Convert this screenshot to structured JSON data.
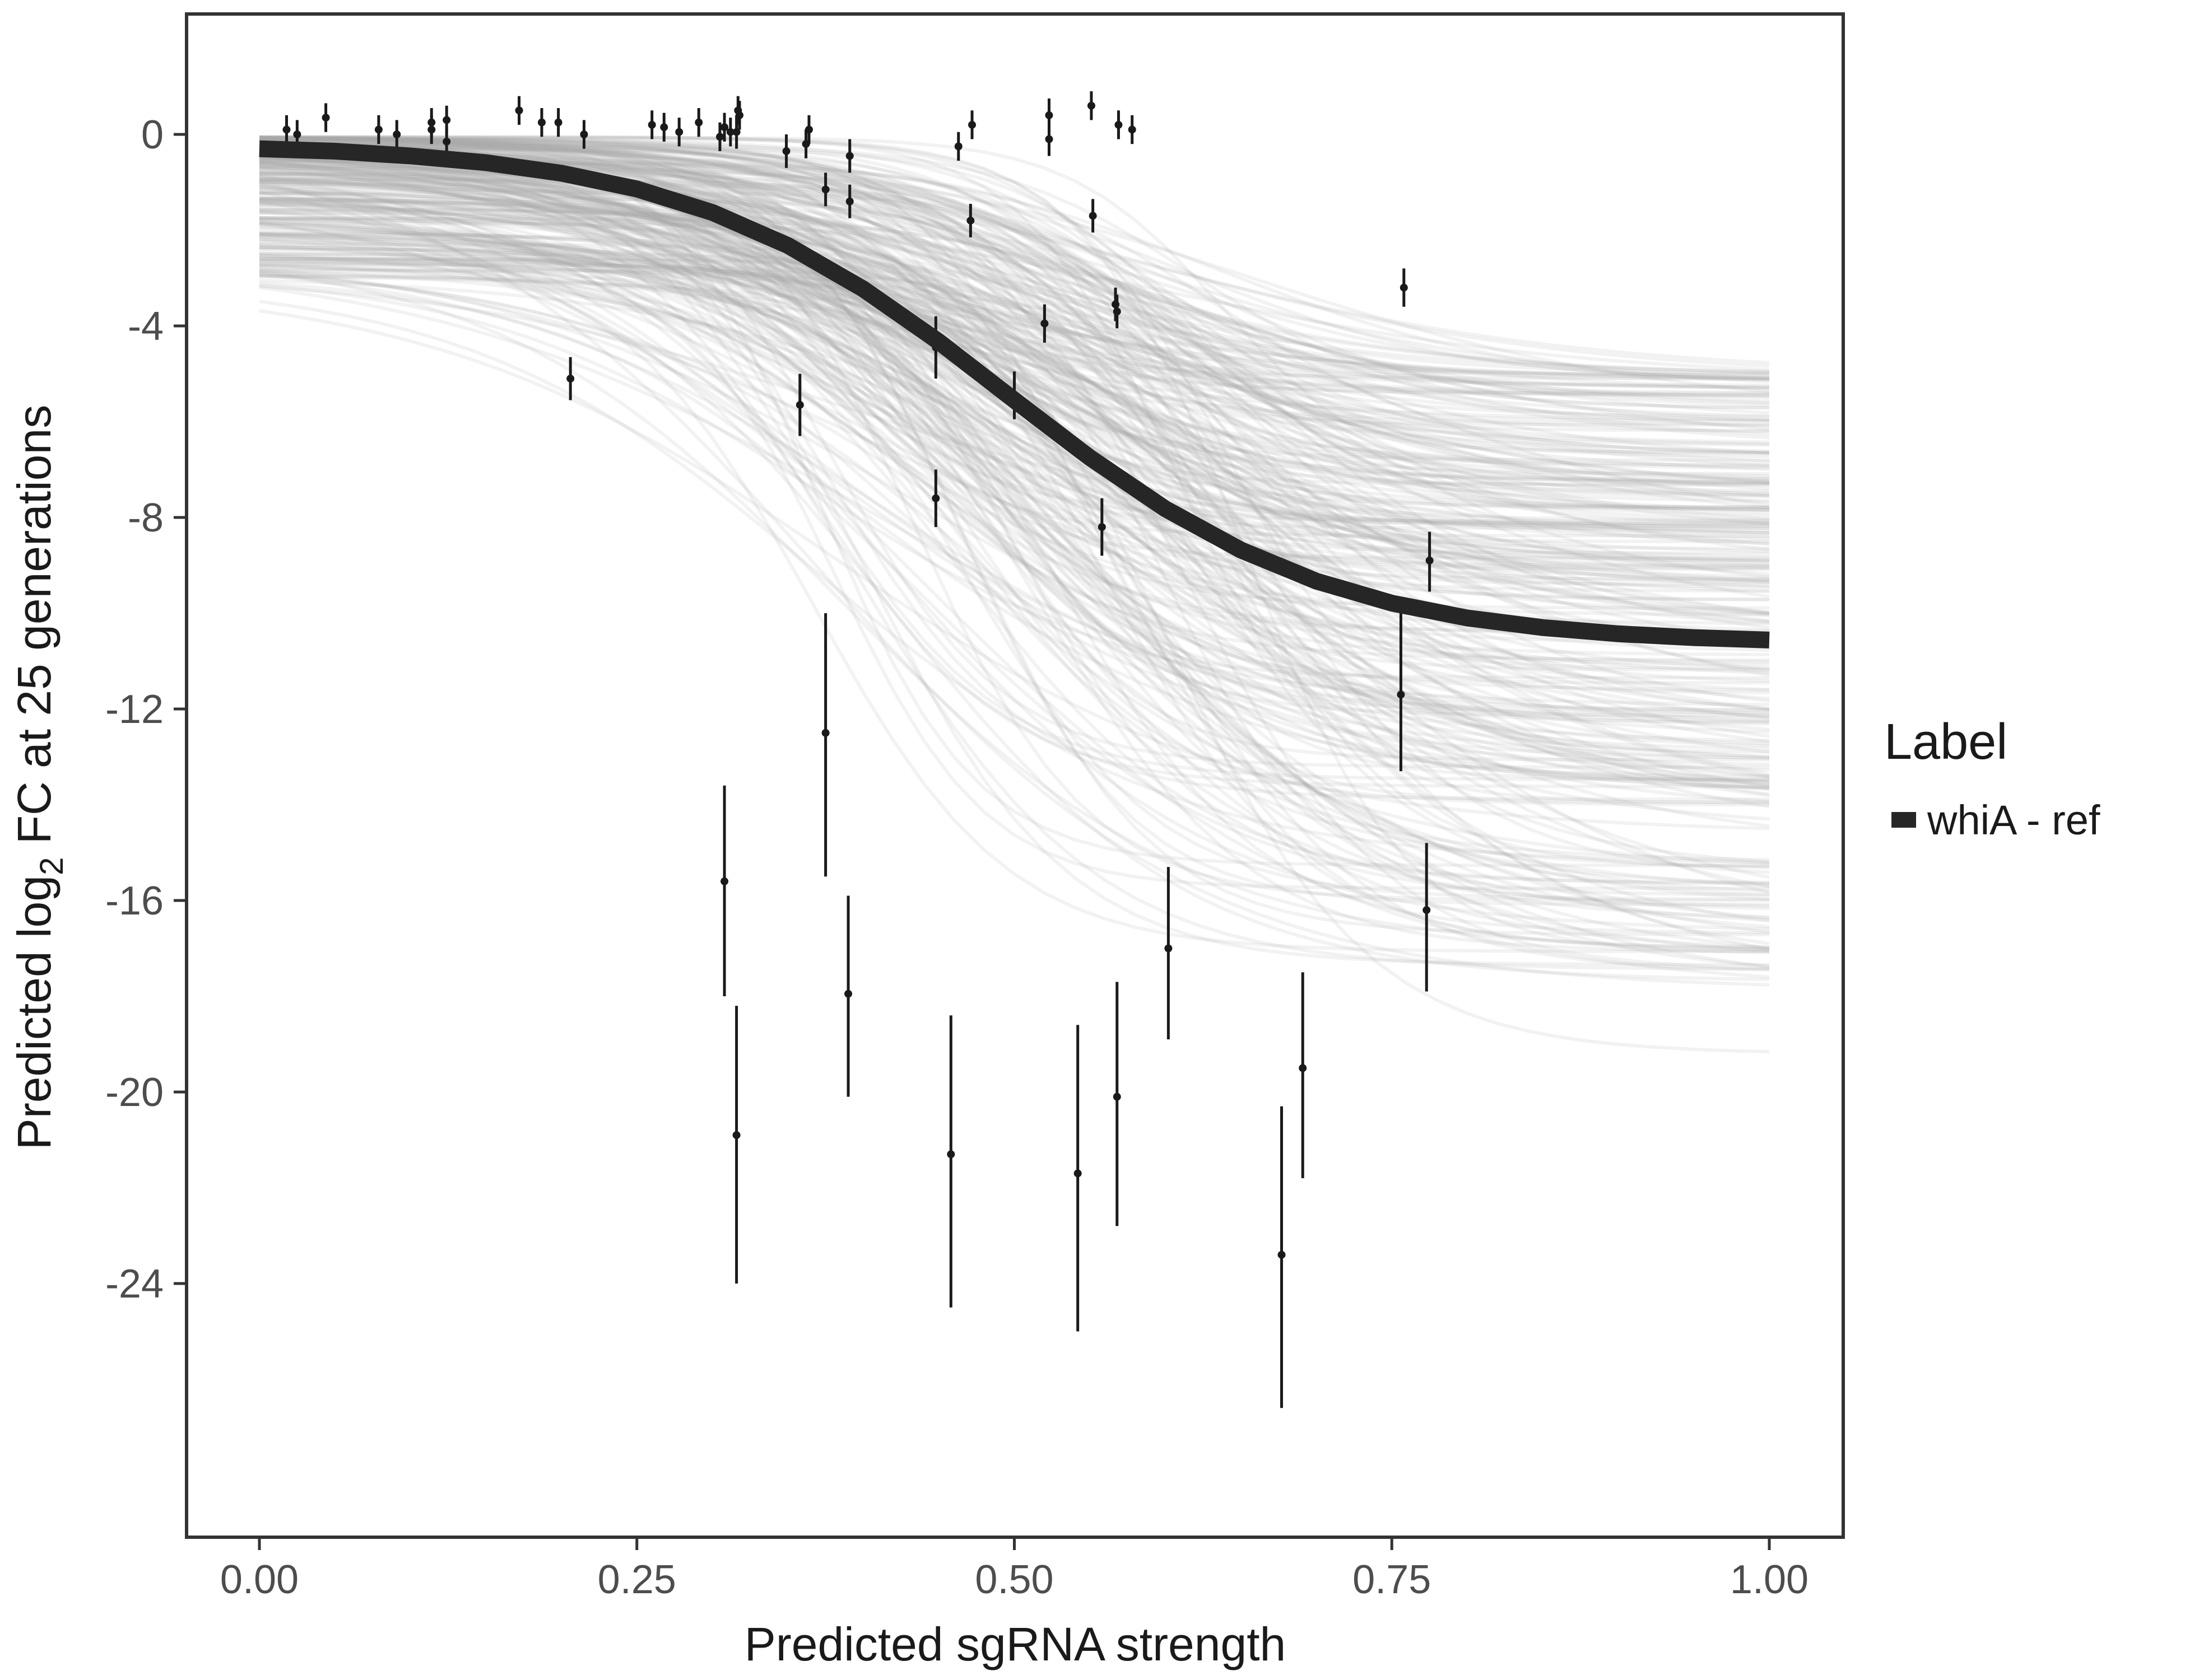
{
  "chart_data": {
    "type": "scatter",
    "title": "",
    "xlabel": "Predicted sgRNA strength",
    "ylabel_parts": {
      "pre": "Predicted  log",
      "sub": "2",
      "post": " FC at 25 generations"
    },
    "xlim": [
      -0.05,
      1.05
    ],
    "ylim": [
      -29,
      2.4
    ],
    "x_ticks": [
      0,
      0.25,
      0.5,
      0.75,
      1.0
    ],
    "x_tick_labels": [
      "0.00",
      "0.25",
      "0.50",
      "0.75",
      "1.00"
    ],
    "y_ticks": [
      0,
      -4,
      -8,
      -12,
      -16,
      -20,
      -24
    ],
    "y_tick_labels": [
      "0",
      "-4",
      "-8",
      "-12",
      "-16",
      "-20",
      "-24"
    ],
    "grid": false,
    "legend": {
      "title": "Label",
      "placement": "right",
      "entries": [
        {
          "label": "whiA - ref",
          "color": "#262626"
        }
      ]
    },
    "colors": {
      "main_curve": "#262626",
      "draws": "#a8a8a8",
      "points": "#1a1a1a"
    },
    "fitted_curve": {
      "name": "whiA - ref",
      "x": [
        0,
        0.05,
        0.1,
        0.15,
        0.2,
        0.25,
        0.3,
        0.35,
        0.4,
        0.45,
        0.5,
        0.55,
        0.6,
        0.65,
        0.7,
        0.75,
        0.8,
        0.85,
        0.9,
        0.95,
        1.0
      ],
      "y": [
        -0.3,
        -0.35,
        -0.45,
        -0.59,
        -0.81,
        -1.14,
        -1.63,
        -2.32,
        -3.23,
        -4.33,
        -5.55,
        -6.75,
        -7.82,
        -8.68,
        -9.33,
        -9.79,
        -10.1,
        -10.3,
        -10.43,
        -10.51,
        -10.56
      ]
    },
    "points": [
      {
        "x": 0.018,
        "y": 0.1,
        "lo": -0.25,
        "hi": 0.4
      },
      {
        "x": 0.025,
        "y": 0.0,
        "lo": -0.3,
        "hi": 0.3
      },
      {
        "x": 0.044,
        "y": 0.35,
        "lo": 0.05,
        "hi": 0.65
      },
      {
        "x": 0.079,
        "y": 0.1,
        "lo": -0.2,
        "hi": 0.4
      },
      {
        "x": 0.091,
        "y": 0.0,
        "lo": -0.3,
        "hi": 0.3
      },
      {
        "x": 0.114,
        "y": 0.1,
        "lo": -0.2,
        "hi": 0.4
      },
      {
        "x": 0.114,
        "y": 0.25,
        "lo": -0.05,
        "hi": 0.55
      },
      {
        "x": 0.124,
        "y": 0.3,
        "lo": 0.0,
        "hi": 0.6
      },
      {
        "x": 0.124,
        "y": -0.15,
        "lo": -0.45,
        "hi": 0.15
      },
      {
        "x": 0.172,
        "y": 0.5,
        "lo": 0.2,
        "hi": 0.8
      },
      {
        "x": 0.187,
        "y": 0.25,
        "lo": -0.05,
        "hi": 0.55
      },
      {
        "x": 0.198,
        "y": 0.25,
        "lo": -0.05,
        "hi": 0.55
      },
      {
        "x": 0.215,
        "y": 0.0,
        "lo": -0.3,
        "hi": 0.3
      },
      {
        "x": 0.206,
        "y": -5.1,
        "lo": -5.55,
        "hi": -4.65
      },
      {
        "x": 0.26,
        "y": 0.2,
        "lo": -0.1,
        "hi": 0.5
      },
      {
        "x": 0.268,
        "y": 0.15,
        "lo": -0.15,
        "hi": 0.45
      },
      {
        "x": 0.278,
        "y": 0.05,
        "lo": -0.25,
        "hi": 0.35
      },
      {
        "x": 0.291,
        "y": 0.25,
        "lo": -0.05,
        "hi": 0.55
      },
      {
        "x": 0.305,
        "y": -0.05,
        "lo": -0.35,
        "hi": 0.25
      },
      {
        "x": 0.308,
        "y": 0.15,
        "lo": -0.15,
        "hi": 0.45
      },
      {
        "x": 0.312,
        "y": 0.05,
        "lo": -0.25,
        "hi": 0.35
      },
      {
        "x": 0.316,
        "y": 0.05,
        "lo": -0.3,
        "hi": 0.4
      },
      {
        "x": 0.317,
        "y": 0.5,
        "lo": 0.2,
        "hi": 0.8
      },
      {
        "x": 0.318,
        "y": 0.4,
        "lo": 0.1,
        "hi": 0.7
      },
      {
        "x": 0.349,
        "y": -0.35,
        "lo": -0.7,
        "hi": 0.0
      },
      {
        "x": 0.362,
        "y": -0.2,
        "lo": -0.5,
        "hi": 0.1
      },
      {
        "x": 0.364,
        "y": 0.1,
        "lo": -0.2,
        "hi": 0.4
      },
      {
        "x": 0.375,
        "y": -1.15,
        "lo": -1.5,
        "hi": -0.8
      },
      {
        "x": 0.391,
        "y": -0.45,
        "lo": -0.8,
        "hi": -0.1
      },
      {
        "x": 0.391,
        "y": -1.4,
        "lo": -1.75,
        "hi": -1.05
      },
      {
        "x": 0.358,
        "y": -5.65,
        "lo": -6.3,
        "hi": -5.0
      },
      {
        "x": 0.375,
        "y": -12.5,
        "lo": -15.5,
        "hi": -10.0
      },
      {
        "x": 0.308,
        "y": -15.6,
        "lo": -18.0,
        "hi": -13.6
      },
      {
        "x": 0.316,
        "y": -20.9,
        "lo": -24.0,
        "hi": -18.2
      },
      {
        "x": 0.39,
        "y": -17.95,
        "lo": -20.1,
        "hi": -15.9
      },
      {
        "x": 0.448,
        "y": -4.45,
        "lo": -5.1,
        "hi": -3.8
      },
      {
        "x": 0.448,
        "y": -7.6,
        "lo": -8.2,
        "hi": -7.0
      },
      {
        "x": 0.458,
        "y": -21.3,
        "lo": -24.5,
        "hi": -18.4
      },
      {
        "x": 0.463,
        "y": -0.25,
        "lo": -0.55,
        "hi": 0.05
      },
      {
        "x": 0.472,
        "y": 0.2,
        "lo": -0.1,
        "hi": 0.5
      },
      {
        "x": 0.471,
        "y": -1.8,
        "lo": -2.15,
        "hi": -1.45
      },
      {
        "x": 0.5,
        "y": -5.45,
        "lo": -5.95,
        "hi": -4.95
      },
      {
        "x": 0.52,
        "y": -3.95,
        "lo": -4.35,
        "hi": -3.55
      },
      {
        "x": 0.523,
        "y": 0.4,
        "lo": 0.05,
        "hi": 0.75
      },
      {
        "x": 0.523,
        "y": -0.1,
        "lo": -0.45,
        "hi": 0.25
      },
      {
        "x": 0.551,
        "y": 0.6,
        "lo": 0.3,
        "hi": 0.9
      },
      {
        "x": 0.552,
        "y": -1.7,
        "lo": -2.05,
        "hi": -1.35
      },
      {
        "x": 0.567,
        "y": -3.55,
        "lo": -3.9,
        "hi": -3.2
      },
      {
        "x": 0.568,
        "y": -3.7,
        "lo": -4.05,
        "hi": -3.35
      },
      {
        "x": 0.569,
        "y": 0.2,
        "lo": -0.1,
        "hi": 0.5
      },
      {
        "x": 0.578,
        "y": 0.1,
        "lo": -0.2,
        "hi": 0.4
      },
      {
        "x": 0.558,
        "y": -8.2,
        "lo": -8.8,
        "hi": -7.6
      },
      {
        "x": 0.542,
        "y": -21.7,
        "lo": -25.0,
        "hi": -18.6
      },
      {
        "x": 0.568,
        "y": -20.1,
        "lo": -22.8,
        "hi": -17.7
      },
      {
        "x": 0.602,
        "y": -17.0,
        "lo": -18.9,
        "hi": -15.3
      },
      {
        "x": 0.677,
        "y": -23.4,
        "lo": -26.6,
        "hi": -20.3
      },
      {
        "x": 0.691,
        "y": -19.5,
        "lo": -21.8,
        "hi": -17.5
      },
      {
        "x": 0.758,
        "y": -3.2,
        "lo": -3.6,
        "hi": -2.8
      },
      {
        "x": 0.756,
        "y": -11.7,
        "lo": -13.3,
        "hi": -10.0
      },
      {
        "x": 0.775,
        "y": -8.9,
        "lo": -9.55,
        "hi": -8.3
      },
      {
        "x": 0.773,
        "y": -16.2,
        "lo": -17.9,
        "hi": -14.8
      }
    ]
  }
}
